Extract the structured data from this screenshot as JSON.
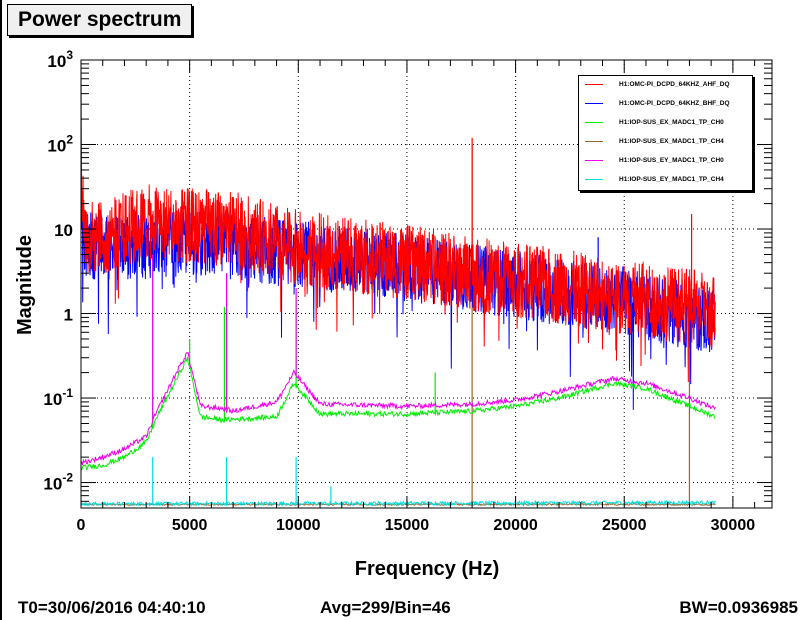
{
  "title": "Power spectrum",
  "status": {
    "t0": "T0=30/06/2016 04:40:10",
    "avg": "Avg=299/Bin=46",
    "bw": "BW=0.0936985"
  },
  "chart_data": {
    "type": "line",
    "xlabel": "Frequency (Hz)",
    "ylabel": "Magnitude",
    "xlim": [
      0,
      31800
    ],
    "ylim": [
      0.005,
      1000
    ],
    "yscale": "log",
    "grid": true,
    "legend_position": "top-right",
    "x_ticks": [
      0,
      5000,
      10000,
      15000,
      20000,
      25000,
      30000
    ],
    "x_tick_labels": [
      "0",
      "5000",
      "10000",
      "15000",
      "20000",
      "25000",
      "30000"
    ],
    "y_ticks": [
      0.01,
      0.1,
      1,
      10,
      100,
      1000
    ],
    "y_tick_labels": [
      {
        "base": "10",
        "exp": "-2"
      },
      {
        "base": "10",
        "exp": "-1"
      },
      {
        "base": "1",
        "exp": ""
      },
      {
        "base": "10",
        "exp": ""
      },
      {
        "base": "10",
        "exp": "2"
      },
      {
        "base": "10",
        "exp": "3"
      }
    ],
    "series": [
      {
        "name": "H1:OMC-PI_DCPD_64KHZ_AHF_DQ",
        "color": "#ff0000",
        "x": [
          0,
          50,
          200,
          1000,
          2000,
          3000,
          5000,
          7000,
          10000,
          15000,
          20000,
          25000,
          28000,
          29200
        ],
        "y": [
          500,
          30,
          8,
          8,
          10,
          12,
          11,
          10,
          6,
          4,
          2.5,
          1.6,
          1.2,
          1.0
        ],
        "spikes": [
          {
            "x": 18000,
            "y": 120
          },
          {
            "x": 28100,
            "y": 15
          }
        ]
      },
      {
        "name": "H1:OMC-PI_DCPD_64KHZ_BHF_DQ",
        "color": "#0000ff",
        "x": [
          0,
          100,
          1000,
          5000,
          10000,
          15000,
          20000,
          25000,
          29200
        ],
        "y": [
          30,
          7,
          6,
          7,
          5,
          3.5,
          2.2,
          1.4,
          0.8
        ],
        "spikes": [
          {
            "x": 23800,
            "y": 8
          }
        ]
      },
      {
        "name": "H1:IOP-SUS_EX_MADC1_TP_CH0",
        "color": "#00ee00",
        "x": [
          0,
          1000,
          2000,
          3000,
          3500,
          4300,
          4900,
          5500,
          6500,
          9000,
          9800,
          11000,
          15000,
          18000,
          20000,
          22000,
          24500,
          26000,
          28000,
          29200
        ],
        "y": [
          0.015,
          0.016,
          0.02,
          0.03,
          0.06,
          0.15,
          0.3,
          0.06,
          0.055,
          0.06,
          0.15,
          0.065,
          0.065,
          0.07,
          0.08,
          0.1,
          0.15,
          0.13,
          0.08,
          0.06
        ],
        "spikes": [
          {
            "x": 3300,
            "y": 4
          },
          {
            "x": 5000,
            "y": 0.5
          },
          {
            "x": 6600,
            "y": 1.2
          },
          {
            "x": 9900,
            "y": 1.5
          },
          {
            "x": 16300,
            "y": 0.2
          }
        ]
      },
      {
        "name": "H1:IOP-SUS_EX_MADC1_TP_CH4",
        "color": "#996633",
        "x": [
          0,
          29200
        ],
        "y": [
          0.0055,
          0.0055
        ],
        "spikes": [
          {
            "x": 18000,
            "y": 100
          },
          {
            "x": 28000,
            "y": 2
          }
        ]
      },
      {
        "name": "H1:IOP-SUS_EY_MADC1_TP_CH0",
        "color": "#ee00ee",
        "x": [
          0,
          1000,
          2000,
          3000,
          3500,
          4300,
          4900,
          5500,
          6500,
          7000,
          9000,
          9800,
          11000,
          15000,
          18000,
          20000,
          22000,
          24500,
          26000,
          28000,
          29200
        ],
        "y": [
          0.017,
          0.02,
          0.025,
          0.035,
          0.07,
          0.18,
          0.35,
          0.08,
          0.075,
          0.07,
          0.09,
          0.2,
          0.085,
          0.08,
          0.085,
          0.095,
          0.12,
          0.17,
          0.15,
          0.1,
          0.075
        ],
        "spikes": [
          {
            "x": 3300,
            "y": 5
          },
          {
            "x": 6700,
            "y": 3
          },
          {
            "x": 9900,
            "y": 2
          }
        ]
      },
      {
        "name": "H1:IOP-SUS_EY_MADC1_TP_CH4",
        "color": "#00dddd",
        "x": [
          0,
          29200
        ],
        "y": [
          0.0056,
          0.0058
        ],
        "spikes": [
          {
            "x": 3300,
            "y": 0.02
          },
          {
            "x": 6700,
            "y": 0.02
          },
          {
            "x": 9900,
            "y": 0.02
          },
          {
            "x": 11500,
            "y": 0.009
          }
        ]
      }
    ]
  }
}
